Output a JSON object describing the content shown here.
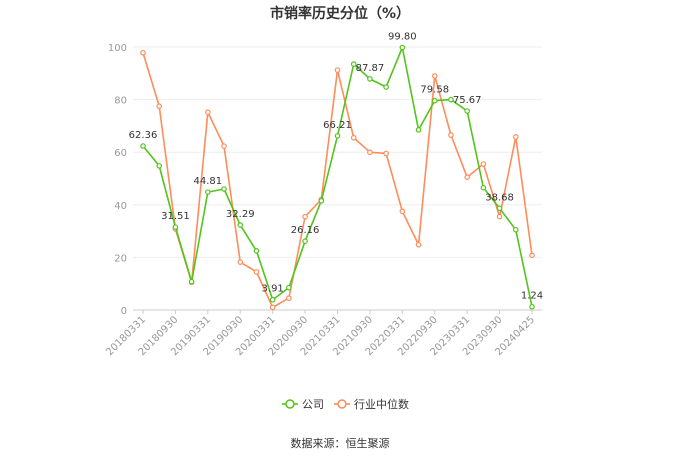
{
  "chart_data": {
    "type": "line",
    "title": "市销率历史分位（%）",
    "x": [
      "20180331",
      "20180630",
      "20180930",
      "20181231",
      "20190331",
      "20190630",
      "20190930",
      "20191231",
      "20200331",
      "20200630",
      "20200930",
      "20201231",
      "20210331",
      "20210630",
      "20210930",
      "20211231",
      "20220331",
      "20220630",
      "20220930",
      "20221231",
      "20230331",
      "20230630",
      "20230930",
      "20231231",
      "20240425"
    ],
    "x_tick_labels": [
      "20180331",
      "20180930",
      "20190331",
      "20190930",
      "20200331",
      "20200930",
      "20210331",
      "20210930",
      "20220331",
      "20220930",
      "20230331",
      "20230930",
      "20240425"
    ],
    "series": [
      {
        "name": "公司",
        "color": "#52c41a",
        "values": [
          62.36,
          54.8,
          31.51,
          10.8,
          44.81,
          46.0,
          32.29,
          22.5,
          3.91,
          8.5,
          26.16,
          41.5,
          66.21,
          93.5,
          87.87,
          84.8,
          99.8,
          68.5,
          79.58,
          80.0,
          75.67,
          46.5,
          38.68,
          30.5,
          1.24
        ]
      },
      {
        "name": "行业中位数",
        "color": "#ff8c5a",
        "values": [
          97.8,
          77.5,
          30.8,
          10.5,
          75.2,
          62.3,
          18.2,
          14.5,
          1.0,
          4.5,
          35.5,
          42.0,
          91.2,
          65.5,
          60.0,
          59.5,
          37.5,
          24.8,
          89.0,
          66.5,
          50.5,
          55.5,
          35.5,
          65.8,
          20.8
        ]
      }
    ],
    "data_labels": [
      {
        "series": 0,
        "index": 0,
        "text": "62.36"
      },
      {
        "series": 0,
        "index": 2,
        "text": "31.51"
      },
      {
        "series": 0,
        "index": 4,
        "text": "44.81"
      },
      {
        "series": 0,
        "index": 6,
        "text": "32.29"
      },
      {
        "series": 0,
        "index": 8,
        "text": "3.91"
      },
      {
        "series": 0,
        "index": 10,
        "text": "26.16"
      },
      {
        "series": 0,
        "index": 12,
        "text": "66.21"
      },
      {
        "series": 0,
        "index": 14,
        "text": "87.87"
      },
      {
        "series": 0,
        "index": 16,
        "text": "99.80"
      },
      {
        "series": 0,
        "index": 18,
        "text": "79.58"
      },
      {
        "series": 0,
        "index": 20,
        "text": "75.67"
      },
      {
        "series": 0,
        "index": 22,
        "text": "38.68"
      },
      {
        "series": 0,
        "index": 24,
        "text": "1.24"
      }
    ],
    "xlabel": "",
    "ylabel": "",
    "ylim": [
      0,
      100
    ],
    "yticks": [
      0,
      20,
      40,
      60,
      80,
      100
    ],
    "grid": true,
    "legend_position": "bottom"
  },
  "source": "数据来源：恒生聚源"
}
